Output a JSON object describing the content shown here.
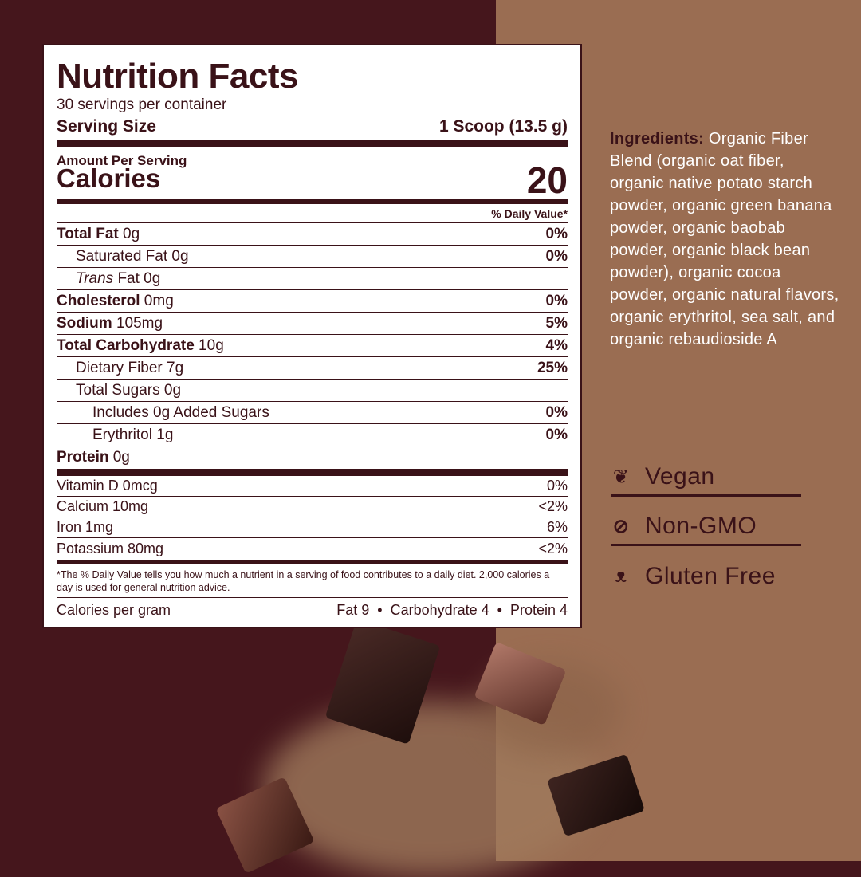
{
  "colors": {
    "maroon": "#45161c",
    "tan": "#9a6d52",
    "ink": "#3a1218"
  },
  "label": {
    "title": "Nutrition Facts",
    "servings": "30 servings per container",
    "serving_size_label": "Serving Size",
    "serving_size_value": "1 Scoop (13.5 g)",
    "amount_per_serving": "Amount Per Serving",
    "calories_label": "Calories",
    "calories_value": "20",
    "dv_header": "% Daily Value*",
    "rows": [
      {
        "name": "Total Fat",
        "amount": " 0g",
        "dv": "0%",
        "indent": 0,
        "bold": true
      },
      {
        "name": "Saturated Fat",
        "amount": " 0g",
        "dv": "0%",
        "indent": 1
      },
      {
        "prefix_italic": "Trans",
        "name": " Fat",
        "amount": " 0g",
        "dv": "",
        "indent": 1
      },
      {
        "name": "Cholesterol",
        "amount": " 0mg",
        "dv": "0%",
        "indent": 0,
        "bold": true
      },
      {
        "name": "Sodium",
        "amount": " 105mg",
        "dv": "5%",
        "indent": 0,
        "bold": true
      },
      {
        "name": "Total Carbohydrate",
        "amount": " 10g",
        "dv": "4%",
        "indent": 0,
        "bold": true
      },
      {
        "name": "Dietary Fiber",
        "amount": " 7g",
        "dv": "25%",
        "indent": 1
      },
      {
        "name": "Total Sugars",
        "amount": " 0g",
        "dv": "",
        "indent": 1
      },
      {
        "name": "Includes 0g Added Sugars",
        "amount": "",
        "dv": "0%",
        "indent": 2
      },
      {
        "name": "Erythritol",
        "amount": " 1g",
        "dv": "0%",
        "indent": 2
      },
      {
        "name": "Protein",
        "amount": " 0g",
        "dv": "",
        "indent": 0,
        "bold": true
      }
    ],
    "vitamins": [
      {
        "name": "Vitamin D 0mcg",
        "dv": "0%"
      },
      {
        "name": "Calcium 10mg",
        "dv": "<2%"
      },
      {
        "name": "Iron 1mg",
        "dv": "6%"
      },
      {
        "name": "Potassium 80mg",
        "dv": "<2%"
      }
    ],
    "footnote": "*The % Daily Value tells you how much a nutrient in a serving of food contributes to a daily diet. 2,000 calories a day is used for general nutrition advice.",
    "calories_per_gram_label": "Calories per gram",
    "calories_per_gram_values": "Fat 9  •  Carbohydrate 4  •  Protein 4"
  },
  "ingredients": {
    "heading": "Ingredients:",
    "text": " Organic Fiber Blend (organic oat fiber, organic native potato starch powder, organic green banana powder, organic baobab powder, organic black bean powder), organic cocoa powder, organic natural flavors, organic erythritol, sea salt, and organic rebaudioside A"
  },
  "badges": [
    {
      "icon": "leaf-icon",
      "label": "Vegan"
    },
    {
      "icon": "no-symbol-icon",
      "label": "Non-GMO"
    },
    {
      "icon": "wheat-icon",
      "label": "Gluten Free"
    }
  ]
}
